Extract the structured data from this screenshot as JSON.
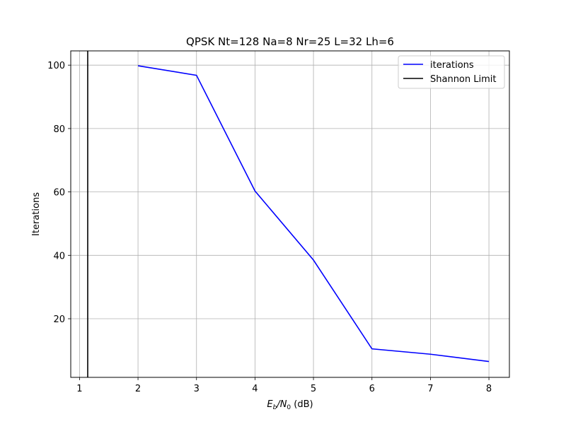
{
  "chart_data": {
    "type": "line",
    "title": "QPSK Nt=128 Na=8 Nr=25 L=32 Lh=6",
    "xlabel_main": "E",
    "xlabel_sub1": "b",
    "xlabel_mid": "/N",
    "xlabel_sub2": "0",
    "xlabel_unit": " (dB)",
    "ylabel": "Iterations",
    "xlim": [
      0.85,
      8.35
    ],
    "ylim": [
      1.5,
      104.5
    ],
    "xticks": [
      1,
      2,
      3,
      4,
      5,
      6,
      7,
      8
    ],
    "yticks": [
      20,
      40,
      60,
      80,
      100
    ],
    "grid": true,
    "legend_position": "top-right",
    "series": [
      {
        "name": "iterations",
        "color": "#0000ff",
        "x": [
          2,
          3,
          4,
          5,
          6,
          7,
          8
        ],
        "y": [
          99.8,
          96.8,
          60.3,
          38.5,
          10.5,
          8.8,
          6.5
        ]
      }
    ],
    "vlines": [
      {
        "name": "Shannon Limit",
        "color": "#000000",
        "x": 1.14
      }
    ]
  }
}
